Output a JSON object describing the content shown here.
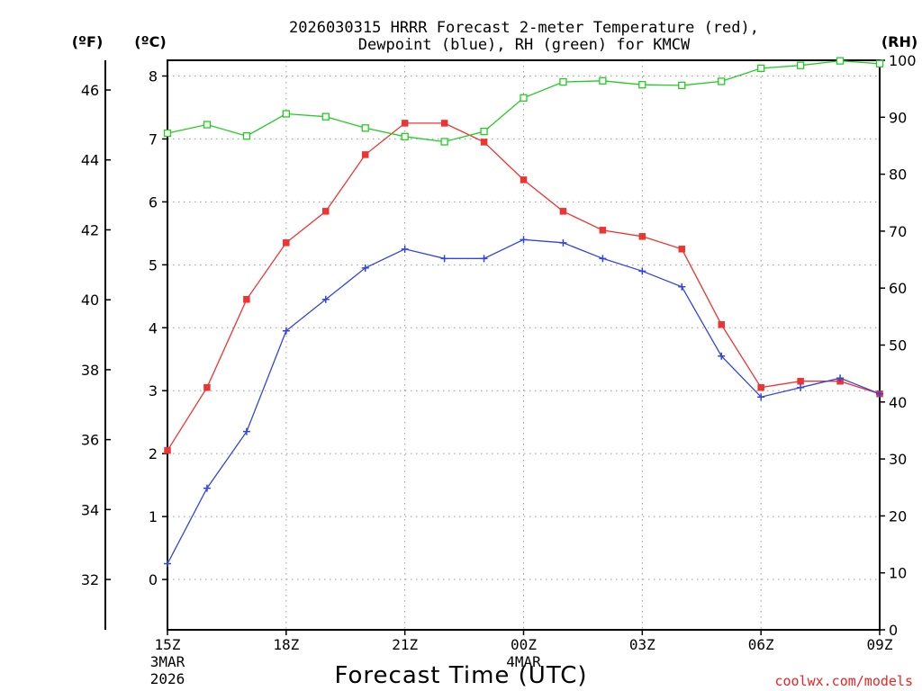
{
  "chart_data": {
    "type": "line",
    "title_line1": "2026030315 HRRR Forecast 2-meter Temperature (red),",
    "title_line2": "Dewpoint (blue), RH (green) for KMCW",
    "xlabel": "Forecast Time (UTC)",
    "watermark": "coolwx.com/models",
    "unit_labels": {
      "fahrenheit": "(ºF)",
      "celsius": "(ºC)",
      "rh": "(RH)"
    },
    "x_hours": [
      0,
      1,
      2,
      3,
      4,
      5,
      6,
      7,
      8,
      9,
      10,
      11,
      12,
      13,
      14,
      15,
      16,
      17,
      18
    ],
    "x_ticks": [
      {
        "hour": 0,
        "label": "15Z",
        "sub1": "3MAR",
        "sub2": "2026"
      },
      {
        "hour": 3,
        "label": "18Z"
      },
      {
        "hour": 6,
        "label": "21Z"
      },
      {
        "hour": 9,
        "label": "00Z",
        "sub1": "4MAR"
      },
      {
        "hour": 12,
        "label": "03Z"
      },
      {
        "hour": 15,
        "label": "06Z"
      },
      {
        "hour": 18,
        "label": "09Z"
      }
    ],
    "ylim_celsius": [
      -0.8,
      8.25
    ],
    "yticks_celsius": [
      "0",
      "1",
      "2",
      "3",
      "4",
      "5",
      "6",
      "7",
      "8"
    ],
    "yticks_fahrenheit": [
      "32",
      "34",
      "36",
      "38",
      "40",
      "42",
      "44",
      "46"
    ],
    "ylim_rh": [
      0,
      100
    ],
    "yticks_rh": [
      "0",
      "10",
      "20",
      "30",
      "40",
      "50",
      "60",
      "70",
      "80",
      "90",
      "100"
    ],
    "series": [
      {
        "name": "Temperature",
        "unit": "C",
        "color": "#ee3333",
        "marker": "filled-square",
        "values": [
          2.05,
          3.05,
          4.45,
          5.35,
          5.85,
          6.75,
          7.25,
          7.25,
          6.95,
          6.35,
          5.85,
          5.55,
          5.45,
          5.25,
          4.05,
          3.05,
          3.15,
          3.15,
          2.95
        ]
      },
      {
        "name": "Dewpoint",
        "unit": "C",
        "color": "#3344dd",
        "marker": "plus",
        "values": [
          0.25,
          1.45,
          2.35,
          3.95,
          4.45,
          4.95,
          5.25,
          5.1,
          5.1,
          5.4,
          5.35,
          5.1,
          4.9,
          4.65,
          3.55,
          2.9,
          3.05,
          3.2,
          2.95
        ]
      },
      {
        "name": "RH",
        "unit": "%",
        "color": "#22cc22",
        "marker": "open-square",
        "values": [
          87.2,
          88.7,
          86.7,
          90.6,
          90.1,
          88.1,
          86.6,
          85.7,
          87.5,
          93.4,
          96.2,
          96.4,
          95.7,
          95.6,
          96.3,
          98.6,
          99.1,
          99.9,
          99.4
        ]
      }
    ]
  }
}
